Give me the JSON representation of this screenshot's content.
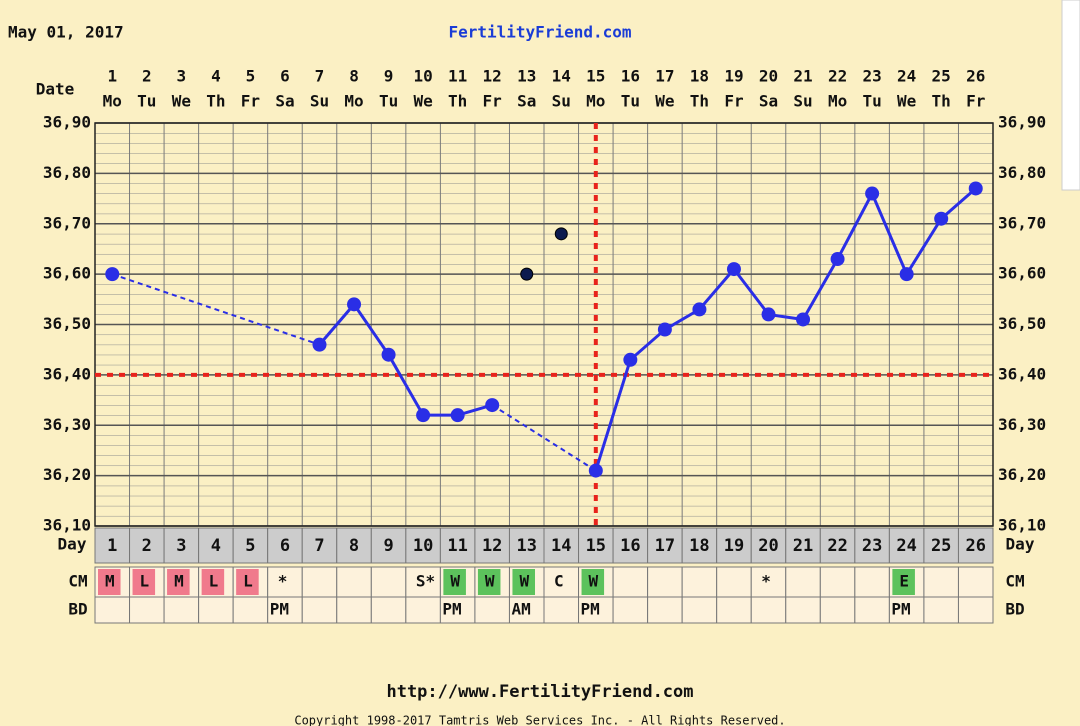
{
  "chart_data": {
    "type": "line",
    "date": "May 01, 2017",
    "title": "FertilityFriend.com",
    "date_label": "Date",
    "categories": [
      "1",
      "2",
      "3",
      "4",
      "5",
      "6",
      "7",
      "8",
      "9",
      "10",
      "11",
      "12",
      "13",
      "14",
      "15",
      "16",
      "17",
      "18",
      "19",
      "20",
      "21",
      "22",
      "23",
      "24",
      "25",
      "26"
    ],
    "weekdays": [
      "Mo",
      "Tu",
      "We",
      "Th",
      "Fr",
      "Sa",
      "Su",
      "Mo",
      "Tu",
      "We",
      "Th",
      "Fr",
      "Sa",
      "Su",
      "Mo",
      "Tu",
      "We",
      "Th",
      "Fr",
      "Sa",
      "Su",
      "Mo",
      "Tu",
      "We",
      "Th",
      "Fr"
    ],
    "series": [
      {
        "color": "#2a2ee6",
        "values": [
          36.6,
          null,
          null,
          null,
          null,
          null,
          36.46,
          36.54,
          36.44,
          36.32,
          36.32,
          36.34,
          null,
          null,
          36.21,
          36.43,
          36.49,
          36.53,
          36.61,
          36.52,
          36.51,
          36.63,
          36.76,
          36.6,
          36.71,
          36.77
        ]
      },
      {
        "color": "#0c1a4e",
        "values": [
          null,
          null,
          null,
          null,
          null,
          null,
          null,
          null,
          null,
          null,
          null,
          null,
          36.6,
          36.68,
          null,
          null,
          null,
          null,
          null,
          null,
          null,
          null,
          null,
          null,
          null,
          null
        ]
      }
    ],
    "ylim": [
      36.1,
      36.9
    ],
    "yticks": [
      {
        "value": 36.1,
        "label": "36,10"
      },
      {
        "value": 36.2,
        "label": "36,20"
      },
      {
        "value": 36.3,
        "label": "36,30"
      },
      {
        "value": 36.4,
        "label": "36,40"
      },
      {
        "value": 36.5,
        "label": "36,50"
      },
      {
        "value": 36.6,
        "label": "36,60"
      },
      {
        "value": 36.7,
        "label": "36,70"
      },
      {
        "value": 36.8,
        "label": "36,80"
      },
      {
        "value": 36.9,
        "label": "36,90"
      }
    ],
    "grid": true,
    "coverline": 36.4,
    "ovulation_day": 15,
    "marker_color": "#e8231c",
    "table": {
      "day_label": "Day",
      "cm_label": "CM",
      "cm": [
        "M",
        "L",
        "M",
        "L",
        "L",
        "*",
        null,
        null,
        null,
        "S*",
        "W",
        "W",
        "W",
        "C",
        "W",
        null,
        null,
        null,
        null,
        "*",
        null,
        null,
        null,
        "E",
        null,
        null
      ],
      "cm_colors": [
        "#f07a8c",
        "#f07a8c",
        "#f07a8c",
        "#f07a8c",
        "#f07a8c",
        null,
        null,
        null,
        null,
        null,
        "#5cc25c",
        "#5cc25c",
        "#5cc25c",
        null,
        "#5cc25c",
        null,
        null,
        null,
        null,
        null,
        null,
        null,
        null,
        "#5cc25c",
        null,
        null
      ],
      "bd_label": "BD",
      "bd": [
        null,
        null,
        null,
        null,
        null,
        "PM",
        null,
        null,
        null,
        null,
        "PM",
        null,
        "AM",
        null,
        "PM",
        null,
        null,
        null,
        null,
        null,
        null,
        null,
        null,
        "PM",
        null,
        null
      ]
    },
    "footer": {
      "url": "http://www.FertilityFriend.com",
      "copyright": "Copyright 1998-2017 Tamtris Web Services Inc. - All Rights Reserved."
    }
  }
}
